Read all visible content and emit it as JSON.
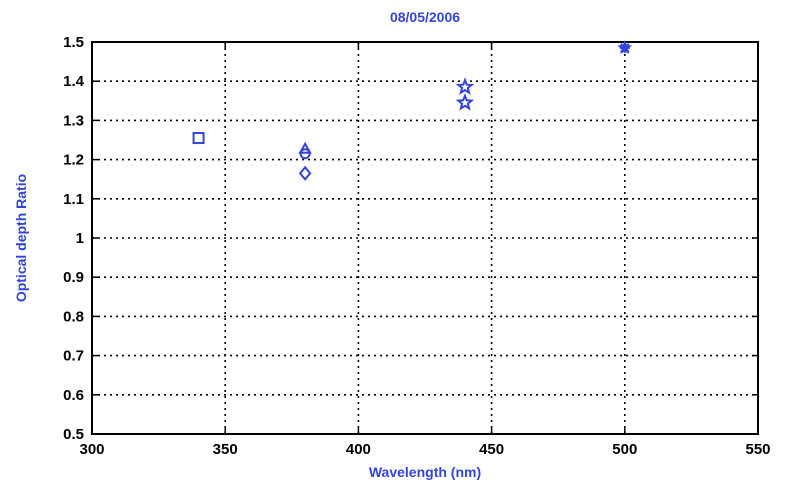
{
  "chart_data": {
    "type": "scatter",
    "title": "08/05/2006",
    "xlabel": "Wavelength (nm)",
    "ylabel": "Optical depth Ratio",
    "xlim": [
      300,
      550
    ],
    "ylim": [
      0.5,
      1.5
    ],
    "xticks": [
      300,
      350,
      400,
      450,
      500,
      550
    ],
    "xtick_labels": [
      "300",
      "350",
      "400",
      "450",
      "500",
      "550"
    ],
    "yticks": [
      0.5,
      0.6,
      0.7,
      0.8,
      0.9,
      1.0,
      1.1,
      1.2,
      1.3,
      1.4,
      1.5
    ],
    "ytick_labels": [
      "0.5",
      "0.6",
      "0.7",
      "0.8",
      "0.9",
      "1",
      "1.1",
      "1.2",
      "1.3",
      "1.4",
      "1.5"
    ],
    "grid": true,
    "color": "#3344dd",
    "series": [
      {
        "marker": "square",
        "points": [
          [
            340,
            1.255
          ]
        ]
      },
      {
        "marker": "diamond",
        "points": [
          [
            380,
            1.165
          ]
        ]
      },
      {
        "marker": "circle",
        "points": [
          [
            380,
            1.215
          ]
        ]
      },
      {
        "marker": "triangle",
        "points": [
          [
            380,
            1.225
          ]
        ]
      },
      {
        "marker": "star",
        "points": [
          [
            440,
            1.385
          ],
          [
            440,
            1.345
          ]
        ]
      },
      {
        "marker": "asterisk",
        "points": [
          [
            500,
            1.485
          ]
        ]
      }
    ]
  }
}
